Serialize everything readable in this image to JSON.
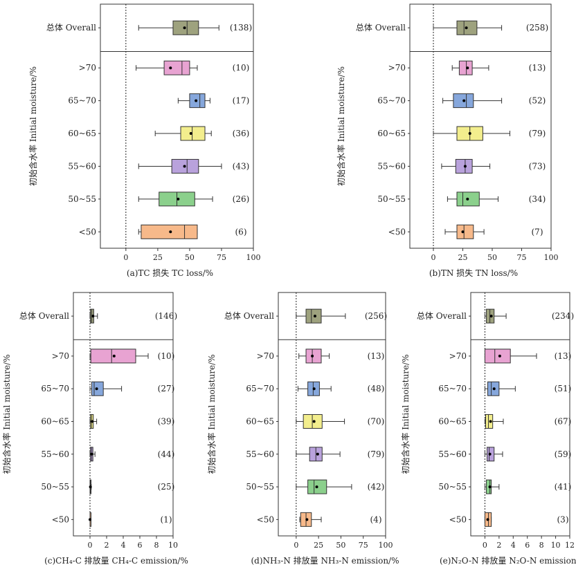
{
  "categories": [
    "总体 Overall",
    ">70",
    "65~70",
    "60~65",
    "55~60",
    "50~55",
    "<50"
  ],
  "colors": [
    "#9ea27e",
    "#e8a3d2",
    "#86a7dc",
    "#f3ee8d",
    "#b9a2dc",
    "#8bd08c",
    "#f7b98a"
  ],
  "chart_data": [
    {
      "type": "box",
      "xlabel": "(a)TC 损失 TC loss/%",
      "ylabel": "初始含水率 Initial moisture/%",
      "xlim": [
        -20,
        100
      ],
      "xticks": [
        "0",
        "25",
        "50",
        "75",
        "100"
      ],
      "categories": [
        "总体 Overall",
        ">70",
        "65~70",
        "60~65",
        "55~60",
        "50~55",
        "<50"
      ],
      "counts": [
        "(138)",
        "(10)",
        "(17)",
        "(36)",
        "(43)",
        "(26)",
        "(6)"
      ],
      "boxes": [
        {
          "min": 10,
          "q1": 37,
          "median": 48,
          "q3": 57,
          "max": 73,
          "mean": 46
        },
        {
          "min": 8,
          "q1": 30,
          "median": 44,
          "q3": 50,
          "max": 56,
          "mean": 35
        },
        {
          "min": 41,
          "q1": 50,
          "median": 58,
          "q3": 62,
          "max": 66,
          "mean": 55
        },
        {
          "min": 23,
          "q1": 43,
          "median": 52,
          "q3": 62,
          "max": 67,
          "mean": 51
        },
        {
          "min": 10,
          "q1": 36,
          "median": 48,
          "q3": 57,
          "max": 75,
          "mean": 46
        },
        {
          "min": 10,
          "q1": 26,
          "median": 40,
          "q3": 54,
          "max": 68,
          "mean": 41
        },
        {
          "min": 10,
          "q1": 12,
          "median": 46,
          "q3": 56,
          "max": 56,
          "mean": 35
        }
      ]
    },
    {
      "type": "box",
      "xlabel": "(b)TN 损失 TN loss/%",
      "ylabel": "初始含水率 Initial moisture/%",
      "xlim": [
        -20,
        100
      ],
      "xticks": [
        "0",
        "25",
        "50",
        "75",
        "100"
      ],
      "categories": [
        "总体 Overall",
        ">70",
        "65~70",
        "60~65",
        "55~60",
        "50~55",
        "<50"
      ],
      "counts": [
        "(258)",
        "(13)",
        "(52)",
        "(79)",
        "(73)",
        "(34)",
        "(7)"
      ],
      "boxes": [
        {
          "min": 0,
          "q1": 20,
          "median": 26,
          "q3": 37,
          "max": 58,
          "mean": 28
        },
        {
          "min": 16,
          "q1": 22,
          "median": 28,
          "q3": 33,
          "max": 47,
          "mean": 29
        },
        {
          "min": 8,
          "q1": 17,
          "median": 28,
          "q3": 34,
          "max": 58,
          "mean": 26
        },
        {
          "min": 0,
          "q1": 20,
          "median": 31,
          "q3": 42,
          "max": 65,
          "mean": 31
        },
        {
          "min": 7,
          "q1": 19,
          "median": 27,
          "q3": 33,
          "max": 48,
          "mean": 27
        },
        {
          "min": 12,
          "q1": 20,
          "median": 25,
          "q3": 39,
          "max": 55,
          "mean": 29
        },
        {
          "min": 10,
          "q1": 20,
          "median": 26,
          "q3": 34,
          "max": 43,
          "mean": 25
        }
      ]
    },
    {
      "type": "box",
      "xlabel": "(c)CH₄-C 排放量 CH₄-C emission/%",
      "ylabel": "初始含水率 Initial moisture/%",
      "xlim": [
        -2,
        10
      ],
      "xticks": [
        "0",
        "2",
        "4",
        "6",
        "8",
        "10"
      ],
      "categories": [
        "总体 Overall",
        ">70",
        "65~70",
        "60~65",
        "55~60",
        "50~55",
        "<50"
      ],
      "counts": [
        "(146)",
        "(10)",
        "(27)",
        "(39)",
        "(44)",
        "(25)",
        "(1)"
      ],
      "boxes": [
        {
          "min": 0,
          "q1": 0.05,
          "median": 0.2,
          "q3": 0.45,
          "max": 0.9,
          "mean": 0.35
        },
        {
          "min": 0,
          "q1": 0.1,
          "median": 2.6,
          "q3": 5.5,
          "max": 7.0,
          "mean": 2.9
        },
        {
          "min": 0,
          "q1": 0.2,
          "median": 0.5,
          "q3": 1.6,
          "max": 3.8,
          "mean": 0.8
        },
        {
          "min": 0,
          "q1": 0.05,
          "median": 0.2,
          "q3": 0.4,
          "max": 0.8,
          "mean": 0.25
        },
        {
          "min": 0,
          "q1": 0.05,
          "median": 0.2,
          "q3": 0.35,
          "max": 0.6,
          "mean": 0.2
        },
        {
          "min": 0,
          "q1": 0,
          "median": 0.05,
          "q3": 0.1,
          "max": 0.15,
          "mean": 0.05
        },
        {
          "min": 0,
          "q1": 0,
          "median": 0,
          "q3": 0,
          "max": 0,
          "mean": 0
        }
      ]
    },
    {
      "type": "box",
      "xlabel": "(d)NH₃-N 排放量 NH₃-N emission/%",
      "ylabel": "初始含水率 Initial moisture/%",
      "xlim": [
        -20,
        100
      ],
      "xticks": [
        "0",
        "25",
        "50",
        "75",
        "100"
      ],
      "categories": [
        "总体 Overall",
        ">70",
        "65~70",
        "60~65",
        "55~60",
        "50~55",
        "<50"
      ],
      "counts": [
        "(256)",
        "(13)",
        "(48)",
        "(70)",
        "(79)",
        "(42)",
        "(4)"
      ],
      "boxes": [
        {
          "min": 0,
          "q1": 11,
          "median": 17,
          "q3": 28,
          "max": 55,
          "mean": 21
        },
        {
          "min": 3,
          "q1": 11,
          "median": 18,
          "q3": 28,
          "max": 37,
          "mean": 18
        },
        {
          "min": 2,
          "q1": 13,
          "median": 19,
          "q3": 26,
          "max": 39,
          "mean": 20
        },
        {
          "min": 0,
          "q1": 8,
          "median": 18,
          "q3": 29,
          "max": 54,
          "mean": 20
        },
        {
          "min": 0,
          "q1": 15,
          "median": 22,
          "q3": 29,
          "max": 49,
          "mean": 24
        },
        {
          "min": 0,
          "q1": 13,
          "median": 20,
          "q3": 34,
          "max": 62,
          "mean": 23
        },
        {
          "min": 4,
          "q1": 5,
          "median": 11,
          "q3": 17,
          "max": 28,
          "mean": 12
        }
      ]
    },
    {
      "type": "box",
      "xlabel": "(e)N₂O-N 排放量 N₂O-N emission/%",
      "ylabel": "初始含水率 Initial moisture/%",
      "xlim": [
        -2,
        12
      ],
      "xticks": [
        "0",
        "2",
        "4",
        "6",
        "8",
        "10",
        "12"
      ],
      "categories": [
        "总体 Overall",
        ">70",
        "65~70",
        "60~65",
        "55~60",
        "50~55",
        "<50"
      ],
      "counts": [
        "(234)",
        "(13)",
        "(51)",
        "(67)",
        "(59)",
        "(41)",
        "(3)"
      ],
      "boxes": [
        {
          "min": 0,
          "q1": 0.2,
          "median": 0.7,
          "q3": 1.3,
          "max": 3.0,
          "mean": 0.9
        },
        {
          "min": 0,
          "q1": 0,
          "median": 1.4,
          "q3": 3.6,
          "max": 7.3,
          "mean": 2.1
        },
        {
          "min": 0,
          "q1": 0.4,
          "median": 0.9,
          "q3": 2.0,
          "max": 4.3,
          "mean": 1.3
        },
        {
          "min": 0,
          "q1": 0.1,
          "median": 0.5,
          "q3": 1.1,
          "max": 2.6,
          "mean": 0.8
        },
        {
          "min": 0,
          "q1": 0.3,
          "median": 0.6,
          "q3": 1.3,
          "max": 2.5,
          "mean": 0.7
        },
        {
          "min": 0,
          "q1": 0.2,
          "median": 0.7,
          "q3": 0.9,
          "max": 2.0,
          "mean": 0.7
        },
        {
          "min": 0,
          "q1": 0,
          "median": 0.5,
          "q3": 0.9,
          "max": 0.9,
          "mean": 0.4
        }
      ]
    }
  ]
}
